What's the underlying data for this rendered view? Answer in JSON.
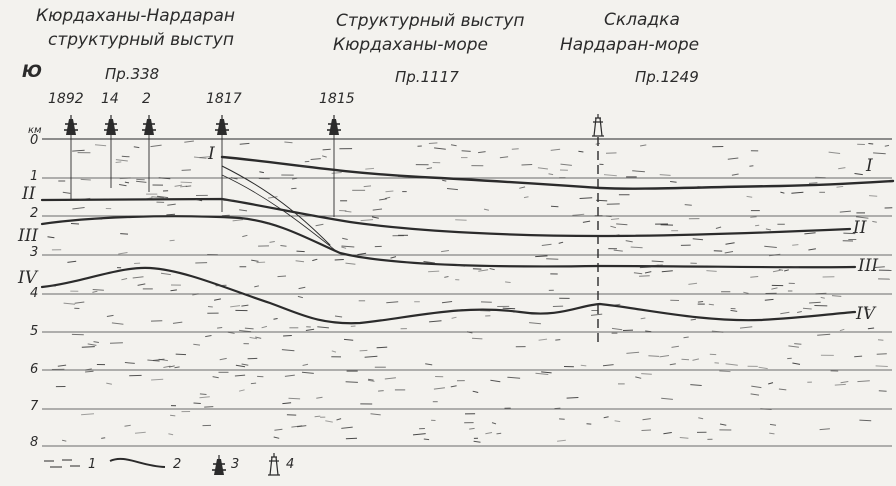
{
  "headers": {
    "left_line1": "Кюрдаханы-Нардаран",
    "left_line2": "структурный выступ",
    "mid_line1": "Структурный выступ",
    "mid_line2": "Кюрдаханы-море",
    "right_line1": "Складка",
    "right_line2": "Нардаран-море"
  },
  "side_label": "Ю",
  "profiles": [
    "Пр.338",
    "Пр.1117",
    "Пр.1249"
  ],
  "wells": [
    "1892",
    "14",
    "2",
    "1817",
    "1815"
  ],
  "depth_unit": "км",
  "depth_ticks": [
    "0",
    "1",
    "2",
    "3",
    "4",
    "5",
    "6",
    "7",
    "8"
  ],
  "horizons_right": [
    "I",
    "II",
    "III",
    "IV"
  ],
  "horizons_left": [
    "I",
    "II",
    "III",
    "IV"
  ],
  "legend": [
    "1",
    "2",
    "3",
    "4"
  ],
  "colors": {
    "ink": "#2b2b2b",
    "paper": "#f3f2ee",
    "grid": "#6a6a6a"
  }
}
